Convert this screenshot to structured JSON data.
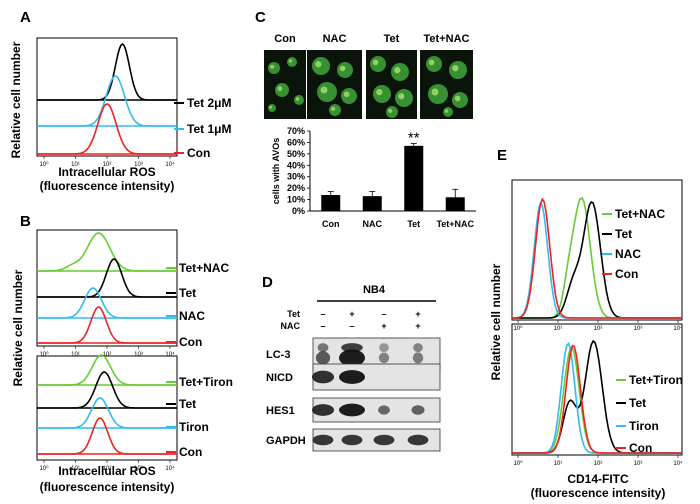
{
  "figure": {
    "panel_labels": {
      "a": "A",
      "b": "B",
      "c": "C",
      "d": "D",
      "e": "E"
    },
    "colors": {
      "green": "#66cc33",
      "black": "#000000",
      "cyan": "#33bbee",
      "red": "#ee2222",
      "fluorescence_bg": "#0b140b",
      "cell_green": "#3fa63a"
    }
  },
  "panel_a": {
    "ylabel": "Relative cell number",
    "xlabel": "Intracellular ROS",
    "xlabel_sub": "(fluorescence intensity)",
    "legend": [
      {
        "label": "Tet 2μM",
        "color": "#000000"
      },
      {
        "label": "Tet 1μM",
        "color": "#33bbee"
      },
      {
        "label": "Con",
        "color": "#ee2222"
      }
    ],
    "ticks": [
      "10⁰",
      "10¹",
      "10²",
      "10³",
      "10⁴"
    ]
  },
  "panel_b": {
    "ylabel": "Relative cell number",
    "xlabel": "Intracellular ROS",
    "xlabel_sub": "(fluorescence intensity)",
    "top_legend": [
      {
        "label": "Tet+NAC",
        "color": "#66cc33"
      },
      {
        "label": "Tet",
        "color": "#000000"
      },
      {
        "label": "NAC",
        "color": "#33bbee"
      },
      {
        "label": "Con",
        "color": "#ee2222"
      }
    ],
    "bottom_legend": [
      {
        "label": "Tet+Tiron",
        "color": "#66cc33"
      },
      {
        "label": "Tet",
        "color": "#000000"
      },
      {
        "label": "Tiron",
        "color": "#33bbee"
      },
      {
        "label": "Con",
        "color": "#ee2222"
      }
    ],
    "ticks": [
      "10⁰",
      "10¹",
      "10²",
      "10³",
      "10⁴"
    ]
  },
  "panel_c": {
    "image_labels": [
      "Con",
      "NAC",
      "Tet",
      "Tet+NAC"
    ],
    "significance": "**"
  },
  "chart_data": {
    "type": "bar",
    "categories": [
      "Con",
      "NAC",
      "Tet",
      "Tet+NAC"
    ],
    "values": [
      14,
      13,
      57,
      12
    ],
    "errors": [
      3,
      4,
      2,
      7
    ],
    "xlabel": "",
    "ylabel": "cells with AVOs",
    "ylim": [
      0,
      70
    ],
    "yticks": [
      "0%",
      "10%",
      "20%",
      "30%",
      "40%",
      "50%",
      "60%",
      "70%"
    ],
    "grid": false
  },
  "panel_d": {
    "cell_line": "NB4",
    "row_labels": [
      "Tet",
      "NAC"
    ],
    "treatment_signs": [
      [
        "–",
        "+",
        "–",
        "+"
      ],
      [
        "–",
        "–",
        "+",
        "+"
      ]
    ],
    "blot_labels": [
      "LC-3",
      "NICD",
      "HES1",
      "GAPDH"
    ]
  },
  "panel_e": {
    "ylabel": "Relative cell number",
    "xlabel": "CD14-FITC",
    "xlabel_sub": "(fluorescence intensity)",
    "top_legend": [
      {
        "label": "Tet+NAC",
        "color": "#66cc33"
      },
      {
        "label": "Tet",
        "color": "#000000"
      },
      {
        "label": "NAC",
        "color": "#33bbee"
      },
      {
        "label": "Con",
        "color": "#ee2222"
      }
    ],
    "bottom_legend": [
      {
        "label": "Tet+Tiron",
        "color": "#66cc33"
      },
      {
        "label": "Tet",
        "color": "#000000"
      },
      {
        "label": "Tiron",
        "color": "#33bbee"
      },
      {
        "label": "Con",
        "color": "#ee2222"
      }
    ],
    "ticks": [
      "10⁰",
      "10¹",
      "10²",
      "10³",
      "10⁴"
    ]
  }
}
